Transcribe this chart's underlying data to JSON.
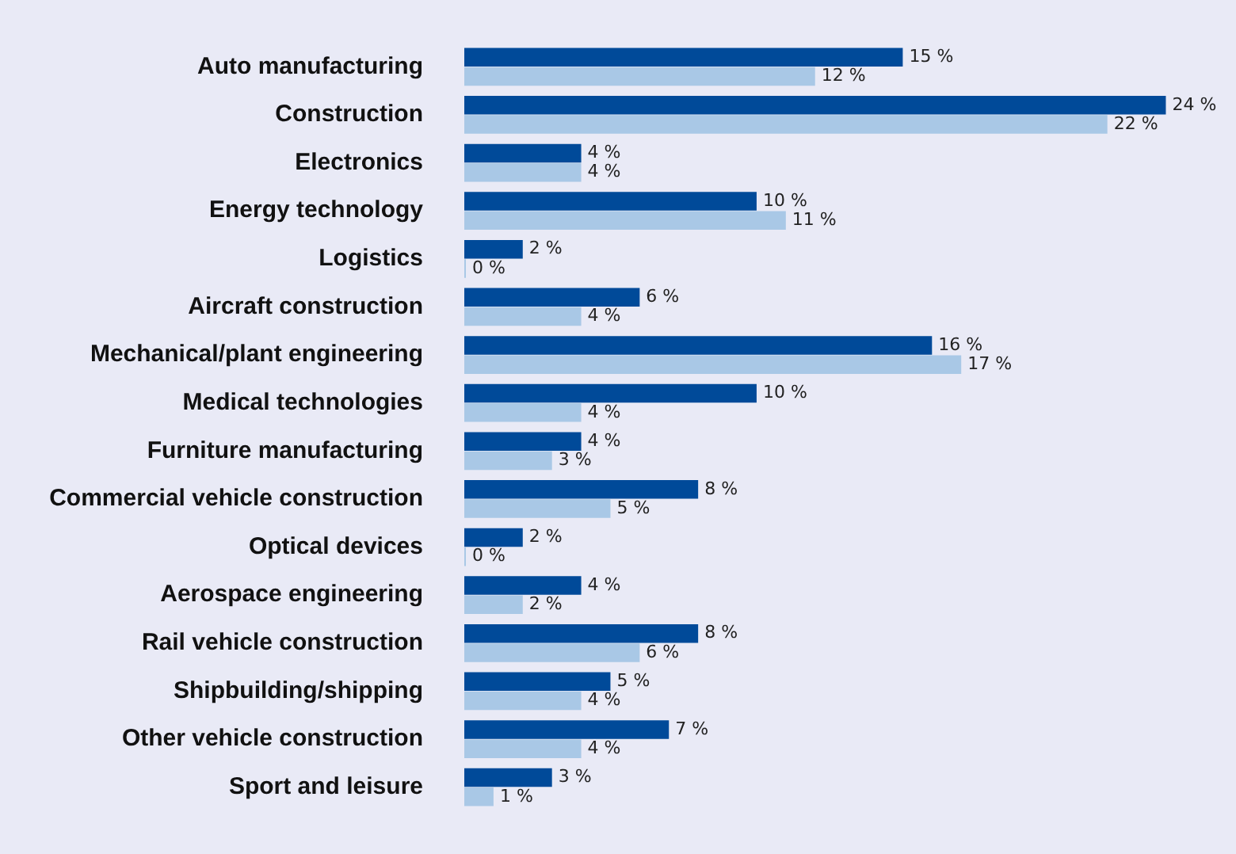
{
  "chart_data": {
    "type": "bar",
    "orientation": "horizontal",
    "legend": false,
    "categories": [
      "Auto manufacturing",
      "Construction",
      "Electronics",
      "Energy technology",
      "Logistics",
      "Aircraft construction",
      "Mechanical/plant engineering",
      "Medical technologies",
      "Furniture manufacturing",
      "Commercial vehicle construction",
      "Optical devices",
      "Aerospace engineering",
      "Rail vehicle construction",
      "Shipbuilding/shipping",
      "Other vehicle construction",
      "Sport and leisure"
    ],
    "series": [
      {
        "color": "#004a99",
        "values": [
          15,
          24,
          4,
          10,
          2,
          6,
          16,
          10,
          4,
          8,
          2,
          4,
          8,
          5,
          7,
          3
        ],
        "value_labels": [
          "15 %",
          "24 %",
          "4 %",
          "10 %",
          "2 %",
          "6 %",
          "16 %",
          "10 %",
          "4 %",
          "8 %",
          "2 %",
          "4 %",
          "8 %",
          "5 %",
          "7 %",
          "3 %"
        ]
      },
      {
        "color": "#a9c8e6",
        "values": [
          12,
          22,
          4,
          11,
          0,
          4,
          17,
          4,
          3,
          5,
          0,
          2,
          6,
          4,
          4,
          1
        ],
        "value_labels": [
          "12 %",
          "22 %",
          "4 %",
          "11 %",
          "0 %",
          "4 %",
          "17 %",
          "4 %",
          "3 %",
          "5 %",
          "0 %",
          "2 %",
          "6 %",
          "4 %",
          "4 %",
          "1 %"
        ]
      }
    ]
  }
}
